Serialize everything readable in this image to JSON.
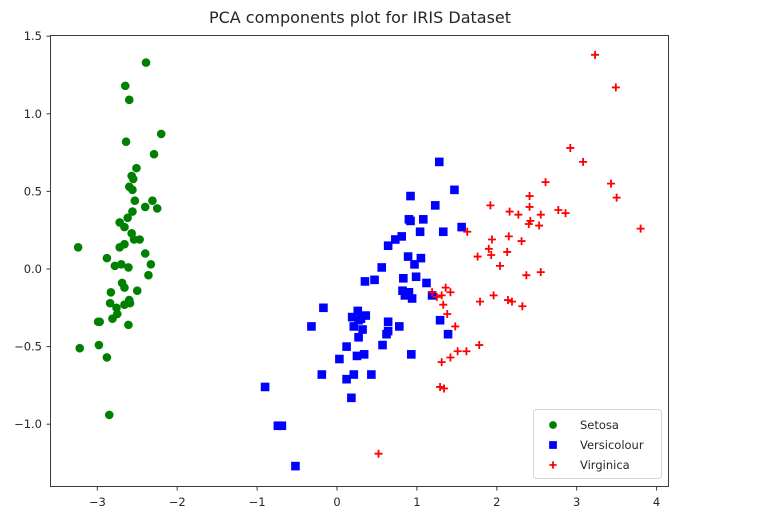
{
  "chart_data": {
    "type": "scatter",
    "title": "PCA components plot for IRIS Dataset",
    "xlabel": "",
    "ylabel": "",
    "xlim": [
      -3.5,
      4.15
    ],
    "ylim": [
      -1.4,
      1.5
    ],
    "x_ticks": [
      -3,
      -2,
      -1,
      0,
      1,
      2,
      3,
      4
    ],
    "x_tick_labels": [
      "−3",
      "−2",
      "−1",
      "0",
      "1",
      "2",
      "3",
      "4"
    ],
    "y_ticks": [
      1.5,
      1.0,
      0.5,
      0.0,
      -0.5,
      -1.0
    ],
    "y_tick_labels": [
      "1.5",
      "1.0",
      "0.5",
      "0.0",
      "−0.5",
      "−1.0"
    ],
    "grid": false,
    "legend_position": "lower right",
    "series": [
      {
        "name": "Setosa",
        "marker": "circle",
        "color": "#008000",
        "points": [
          [
            -2.39,
            1.33
          ],
          [
            -2.65,
            1.18
          ],
          [
            -2.6,
            1.09
          ],
          [
            -2.2,
            0.87
          ],
          [
            -2.64,
            0.82
          ],
          [
            -2.29,
            0.74
          ],
          [
            -2.51,
            0.65
          ],
          [
            -2.57,
            0.6
          ],
          [
            -2.55,
            0.58
          ],
          [
            -2.6,
            0.53
          ],
          [
            -2.56,
            0.51
          ],
          [
            -2.53,
            0.44
          ],
          [
            -2.56,
            0.37
          ],
          [
            -2.4,
            0.4
          ],
          [
            -2.31,
            0.44
          ],
          [
            -2.25,
            0.39
          ],
          [
            -2.62,
            0.33
          ],
          [
            -2.72,
            0.3
          ],
          [
            -2.66,
            0.27
          ],
          [
            -2.57,
            0.23
          ],
          [
            -2.54,
            0.19
          ],
          [
            -2.66,
            0.16
          ],
          [
            -2.47,
            0.19
          ],
          [
            -2.4,
            0.1
          ],
          [
            -2.72,
            0.14
          ],
          [
            -3.24,
            0.14
          ],
          [
            -2.88,
            0.07
          ],
          [
            -2.7,
            0.03
          ],
          [
            -2.61,
            0.01
          ],
          [
            -2.36,
            -0.04
          ],
          [
            -2.78,
            0.02
          ],
          [
            -2.83,
            -0.15
          ],
          [
            -2.69,
            -0.09
          ],
          [
            -2.66,
            -0.12
          ],
          [
            -2.5,
            -0.14
          ],
          [
            -2.84,
            -0.22
          ],
          [
            -2.59,
            -0.22
          ],
          [
            -2.66,
            -0.23
          ],
          [
            -2.76,
            -0.25
          ],
          [
            -2.6,
            -0.2
          ],
          [
            -2.81,
            -0.32
          ],
          [
            -2.75,
            -0.29
          ],
          [
            -2.99,
            -0.34
          ],
          [
            -2.61,
            -0.36
          ],
          [
            -3.22,
            -0.51
          ],
          [
            -2.98,
            -0.49
          ],
          [
            -2.88,
            -0.57
          ],
          [
            -2.85,
            -0.94
          ],
          [
            -2.97,
            -0.34
          ],
          [
            -2.33,
            0.03
          ]
        ]
      },
      {
        "name": "Versicolour",
        "marker": "square",
        "color": "#0000ff",
        "points": [
          [
            1.28,
            0.69
          ],
          [
            1.47,
            0.51
          ],
          [
            0.92,
            0.47
          ],
          [
            1.23,
            0.41
          ],
          [
            1.08,
            0.32
          ],
          [
            0.9,
            0.32
          ],
          [
            0.92,
            0.31
          ],
          [
            1.56,
            0.27
          ],
          [
            1.33,
            0.24
          ],
          [
            1.04,
            0.24
          ],
          [
            0.73,
            0.19
          ],
          [
            0.81,
            0.21
          ],
          [
            0.64,
            0.15
          ],
          [
            0.89,
            0.08
          ],
          [
            1.05,
            0.07
          ],
          [
            0.56,
            0.01
          ],
          [
            0.97,
            0.03
          ],
          [
            0.47,
            -0.07
          ],
          [
            0.83,
            -0.06
          ],
          [
            0.99,
            -0.05
          ],
          [
            1.12,
            -0.09
          ],
          [
            0.35,
            -0.08
          ],
          [
            0.82,
            -0.14
          ],
          [
            0.85,
            -0.17
          ],
          [
            0.94,
            -0.19
          ],
          [
            1.19,
            -0.17
          ],
          [
            0.9,
            -0.15
          ],
          [
            -0.17,
            -0.25
          ],
          [
            0.26,
            -0.27
          ],
          [
            0.3,
            -0.32
          ],
          [
            0.19,
            -0.31
          ],
          [
            0.27,
            -0.33
          ],
          [
            0.21,
            -0.37
          ],
          [
            0.36,
            -0.3
          ],
          [
            0.32,
            -0.39
          ],
          [
            0.64,
            -0.34
          ],
          [
            0.64,
            -0.4
          ],
          [
            0.78,
            -0.37
          ],
          [
            1.29,
            -0.33
          ],
          [
            0.27,
            -0.44
          ],
          [
            1.39,
            -0.42
          ],
          [
            0.62,
            -0.42
          ],
          [
            0.57,
            -0.49
          ],
          [
            0.12,
            -0.5
          ],
          [
            0.34,
            -0.55
          ],
          [
            0.25,
            -0.56
          ],
          [
            0.93,
            -0.55
          ],
          [
            -0.32,
            -0.37
          ],
          [
            0.03,
            -0.58
          ],
          [
            -0.19,
            -0.68
          ],
          [
            0.12,
            -0.71
          ],
          [
            0.21,
            -0.68
          ],
          [
            0.43,
            -0.68
          ],
          [
            0.18,
            -0.83
          ],
          [
            -0.9,
            -0.76
          ],
          [
            -0.74,
            -1.01
          ],
          [
            -0.69,
            -1.01
          ],
          [
            -0.52,
            -1.27
          ]
        ]
      },
      {
        "name": "Virginica",
        "marker": "plus",
        "color": "#ff0000",
        "points": [
          [
            3.23,
            1.38
          ],
          [
            3.49,
            1.17
          ],
          [
            2.92,
            0.78
          ],
          [
            3.08,
            0.69
          ],
          [
            2.61,
            0.56
          ],
          [
            3.43,
            0.55
          ],
          [
            2.41,
            0.47
          ],
          [
            3.5,
            0.46
          ],
          [
            1.92,
            0.41
          ],
          [
            2.16,
            0.37
          ],
          [
            2.41,
            0.4
          ],
          [
            2.27,
            0.35
          ],
          [
            2.42,
            0.31
          ],
          [
            2.77,
            0.38
          ],
          [
            2.86,
            0.36
          ],
          [
            2.55,
            0.35
          ],
          [
            2.4,
            0.29
          ],
          [
            2.53,
            0.28
          ],
          [
            1.63,
            0.24
          ],
          [
            3.8,
            0.26
          ],
          [
            1.94,
            0.19
          ],
          [
            2.15,
            0.21
          ],
          [
            1.76,
            0.08
          ],
          [
            2.31,
            0.18
          ],
          [
            2.13,
            0.11
          ],
          [
            1.9,
            0.13
          ],
          [
            1.93,
            0.09
          ],
          [
            2.04,
            0.02
          ],
          [
            2.37,
            -0.04
          ],
          [
            2.55,
            -0.02
          ],
          [
            1.79,
            -0.21
          ],
          [
            1.96,
            -0.17
          ],
          [
            2.14,
            -0.2
          ],
          [
            2.19,
            -0.21
          ],
          [
            2.32,
            -0.24
          ],
          [
            1.25,
            -0.18
          ],
          [
            1.36,
            -0.12
          ],
          [
            1.19,
            -0.15
          ],
          [
            1.31,
            -0.17
          ],
          [
            1.42,
            -0.15
          ],
          [
            1.33,
            -0.23
          ],
          [
            1.38,
            -0.29
          ],
          [
            1.48,
            -0.37
          ],
          [
            1.51,
            -0.53
          ],
          [
            1.62,
            -0.53
          ],
          [
            1.31,
            -0.6
          ],
          [
            1.78,
            -0.49
          ],
          [
            1.42,
            -0.57
          ],
          [
            1.29,
            -0.76
          ],
          [
            1.34,
            -0.77
          ],
          [
            0.52,
            -1.19
          ]
        ]
      }
    ]
  },
  "legend": {
    "items": [
      {
        "label": "Setosa",
        "color": "#008000",
        "marker": "circle"
      },
      {
        "label": "Versicolour",
        "color": "#0000ff",
        "marker": "square"
      },
      {
        "label": "Virginica",
        "color": "#ff0000",
        "marker": "plus"
      }
    ]
  }
}
